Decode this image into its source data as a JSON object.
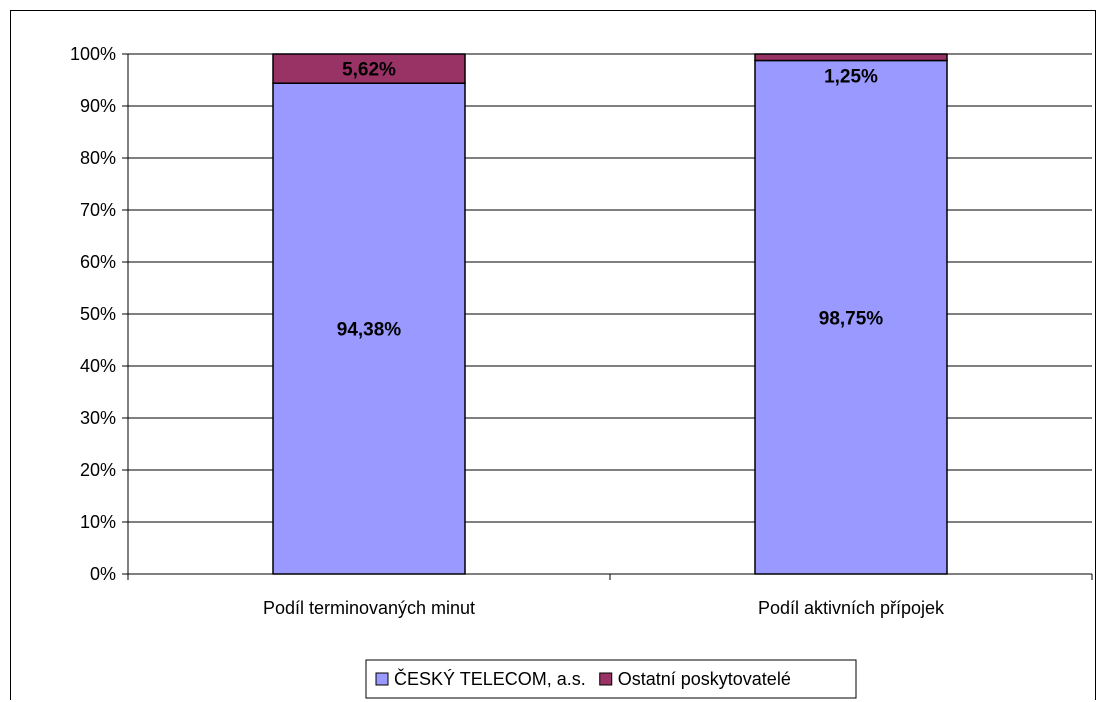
{
  "chart_data": {
    "type": "bar",
    "stacked": true,
    "categories": [
      "Podíl terminovaných minut",
      "Podíl aktivních přípojek"
    ],
    "series": [
      {
        "name": "ČESKÝ TELECOM, a.s.",
        "values": [
          94.38,
          98.75
        ],
        "labels": [
          "94,38%",
          "98,75%"
        ],
        "color": "#9999FF"
      },
      {
        "name": "Ostatní poskytovatelé",
        "values": [
          5.62,
          1.25
        ],
        "labels": [
          "5,62%",
          "1,25%"
        ],
        "color": "#993366"
      }
    ],
    "ylim": [
      0,
      100
    ],
    "yticks": [
      "0%",
      "10%",
      "20%",
      "30%",
      "40%",
      "50%",
      "60%",
      "70%",
      "80%",
      "90%",
      "100%"
    ],
    "title": "",
    "xlabel": "",
    "ylabel": "",
    "grid": true,
    "legend_position": "bottom"
  }
}
